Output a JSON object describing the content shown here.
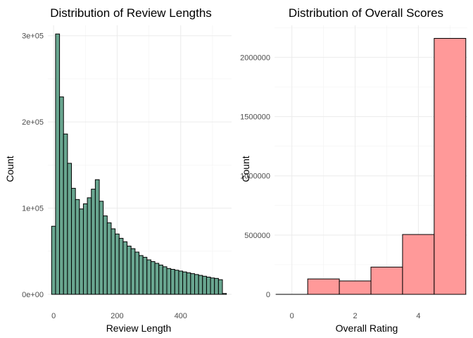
{
  "chart_data": [
    {
      "type": "bar",
      "title": "Distribution of Review Lengths",
      "xlabel": "Review Length",
      "ylabel": "Count",
      "xlim": [
        -18,
        560
      ],
      "ylim": [
        0,
        312000
      ],
      "x_ticks": [
        0,
        200,
        400
      ],
      "x_tick_labels": [
        "0",
        "200",
        "400"
      ],
      "y_ticks": [
        0,
        100000,
        200000,
        300000
      ],
      "y_tick_labels": [
        "0e+00",
        "1e+05",
        "2e+05",
        "3e+05"
      ],
      "bin_width": 12.5,
      "bin_start": -6.25,
      "values": [
        79000,
        302000,
        229000,
        186000,
        152000,
        123000,
        110000,
        99000,
        105000,
        112000,
        122000,
        133000,
        108000,
        91000,
        83000,
        76000,
        70000,
        65000,
        61000,
        56000,
        53000,
        49000,
        45000,
        43000,
        40000,
        38000,
        36000,
        34000,
        32000,
        30000,
        29000,
        28000,
        27000,
        26000,
        25000,
        24000,
        23000,
        22000,
        21000,
        20000,
        19000,
        18500,
        17000,
        1000
      ],
      "bar_color": "#69a690",
      "grid": true,
      "legend": "none"
    },
    {
      "type": "bar",
      "title": "Distribution of Overall Scores",
      "xlabel": "Overall Rating",
      "ylabel": "Count",
      "xlim": [
        -0.55,
        5.55
      ],
      "ylim": [
        0,
        2270000
      ],
      "x_ticks": [
        0,
        2,
        4
      ],
      "x_tick_labels": [
        "0",
        "2",
        "4"
      ],
      "y_ticks": [
        0,
        500000,
        1000000,
        1500000,
        2000000
      ],
      "y_tick_labels": [
        "0",
        "500000",
        "1000000",
        "1500000",
        "2000000"
      ],
      "bin_width": 1,
      "categories": [
        0,
        1,
        2,
        3,
        4,
        5
      ],
      "values": [
        0,
        130000,
        113000,
        230000,
        505000,
        2160000
      ],
      "bar_color": "#ff9999",
      "grid": true,
      "legend": "none"
    }
  ]
}
